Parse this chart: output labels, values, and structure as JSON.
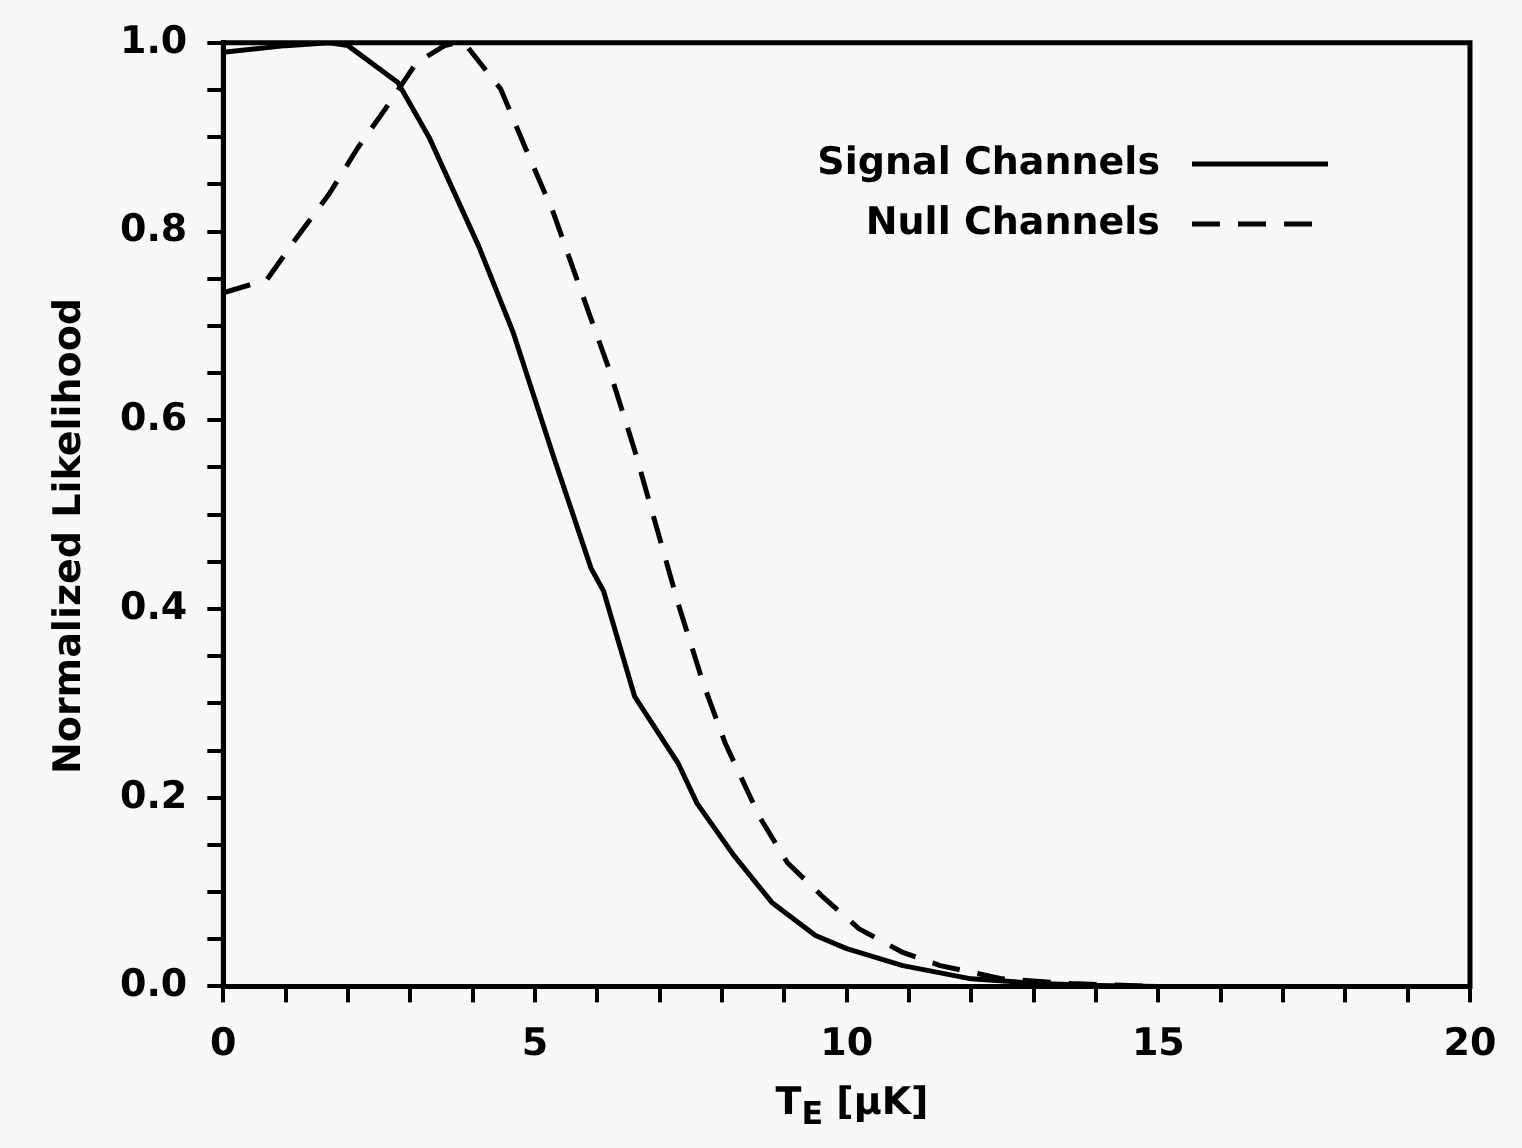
{
  "chart_data": {
    "type": "line",
    "xlabel": "T$_{E}$ [μK]",
    "ylabel": "Normalized Likelihood",
    "xlim": [
      0,
      20
    ],
    "ylim": [
      0,
      1.0
    ],
    "xticks": [
      0,
      {
        "value": 1,
        "label": null
      },
      {
        "value": 2,
        "label": null
      },
      {
        "value": 3,
        "label": null
      },
      {
        "value": 4,
        "label": null
      },
      5,
      {
        "value": 6,
        "label": null
      },
      {
        "value": 7,
        "label": null
      },
      {
        "value": 8,
        "label": null
      },
      {
        "value": 9,
        "label": null
      },
      10,
      {
        "value": 11,
        "label": null
      },
      {
        "value": 12,
        "label": null
      },
      {
        "value": 13,
        "label": null
      },
      {
        "value": 14,
        "label": null
      },
      15,
      {
        "value": 16,
        "label": null
      },
      {
        "value": 17,
        "label": null
      },
      {
        "value": 18,
        "label": null
      },
      {
        "value": 19,
        "label": null
      },
      20
    ],
    "yticks": [
      {
        "value": 0,
        "label": "0.0"
      },
      {
        "value": 0.05,
        "label": null
      },
      {
        "value": 0.1,
        "label": null
      },
      {
        "value": 0.15,
        "label": null
      },
      {
        "value": 0.2,
        "label": "0.2"
      },
      {
        "value": 0.25,
        "label": null
      },
      {
        "value": 0.3,
        "label": null
      },
      {
        "value": 0.35,
        "label": null
      },
      {
        "value": 0.4,
        "label": "0.4"
      },
      {
        "value": 0.45,
        "label": null
      },
      {
        "value": 0.5,
        "label": null
      },
      {
        "value": 0.55,
        "label": null
      },
      {
        "value": 0.6,
        "label": "0.6"
      },
      {
        "value": 0.65,
        "label": null
      },
      {
        "value": 0.7,
        "label": null
      },
      {
        "value": 0.75,
        "label": null
      },
      {
        "value": 0.8,
        "label": "0.8"
      },
      {
        "value": 0.85,
        "label": null
      },
      {
        "value": 0.9,
        "label": null
      },
      {
        "value": 0.95,
        "label": null
      },
      {
        "value": 1.0,
        "label": "1.0"
      }
    ],
    "grid": false,
    "legend": "top right",
    "marker": "none",
    "series": [
      {
        "name": "Signal Channels",
        "color": "#000000",
        "line_style": "solid",
        "x": [
          0,
          1.0,
          1.7,
          2.0,
          2.8,
          3.3,
          4.1,
          4.65,
          5.3,
          5.9,
          6.1,
          6.6,
          7.3,
          7.6,
          8.2,
          8.8,
          9.5,
          10.0,
          10.9,
          12.0,
          13.1,
          14.0,
          15.0
        ],
        "values": [
          0.99,
          0.997,
          1.0,
          0.997,
          0.958,
          0.9,
          0.784,
          0.693,
          0.561,
          0.443,
          0.419,
          0.307,
          0.236,
          0.194,
          0.138,
          0.089,
          0.054,
          0.04,
          0.022,
          0.008,
          0.003,
          0.001,
          0.0
        ]
      },
      {
        "name": "Null Channels",
        "color": "#000000",
        "line_style": "dashed",
        "x": [
          0,
          0.7,
          1.15,
          1.7,
          2.15,
          2.6,
          3.1,
          3.55,
          3.75,
          3.9,
          4.45,
          4.85,
          5.3,
          5.75,
          6.2,
          6.6,
          7.0,
          7.3,
          7.7,
          8.05,
          8.6,
          9.05,
          9.6,
          10.2,
          10.9,
          11.5,
          12.5,
          13.6,
          15.0
        ],
        "values": [
          0.735,
          0.749,
          0.791,
          0.84,
          0.888,
          0.93,
          0.979,
          0.997,
          1.0,
          0.997,
          0.951,
          0.888,
          0.819,
          0.735,
          0.652,
          0.568,
          0.475,
          0.405,
          0.321,
          0.258,
          0.18,
          0.131,
          0.096,
          0.061,
          0.036,
          0.022,
          0.008,
          0.003,
          0.0
        ]
      }
    ]
  }
}
